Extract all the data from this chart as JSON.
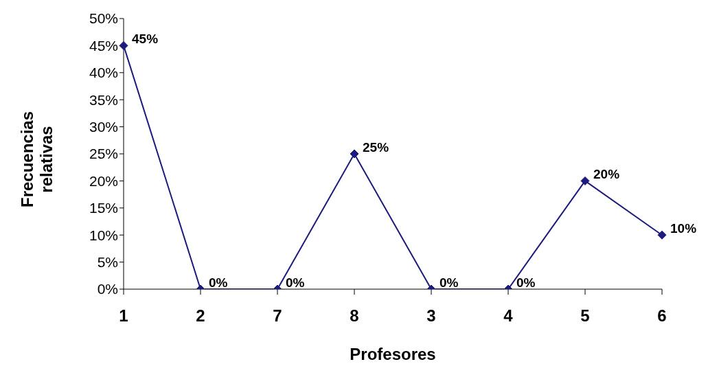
{
  "chart_data": {
    "type": "line",
    "xlabel": "Profesores",
    "ylabel": "Frecuencias relativas",
    "categories": [
      "1",
      "2",
      "7",
      "8",
      "3",
      "4",
      "5",
      "6"
    ],
    "series": [
      {
        "color": "#1c1a7e",
        "values": [
          45,
          0,
          0,
          25,
          0,
          0,
          20,
          10
        ],
        "value_labels": [
          "45%",
          "0%",
          "0%",
          "25%",
          "0%",
          "0%",
          "20%",
          "10%"
        ]
      }
    ],
    "ylim": [
      0,
      50
    ],
    "yticks": [
      {
        "value": 0,
        "label": "0%"
      },
      {
        "value": 5,
        "label": "5%"
      },
      {
        "value": 10,
        "label": "10%"
      },
      {
        "value": 15,
        "label": "15%"
      },
      {
        "value": 20,
        "label": "20%"
      },
      {
        "value": 25,
        "label": "25%"
      },
      {
        "value": 30,
        "label": "30%"
      },
      {
        "value": 35,
        "label": "35%"
      },
      {
        "value": 40,
        "label": "40%"
      },
      {
        "value": 45,
        "label": "45%"
      },
      {
        "value": 50,
        "label": "50%"
      }
    ],
    "marker": "diamond",
    "line_style": "solid",
    "grid": false,
    "legend": false
  }
}
